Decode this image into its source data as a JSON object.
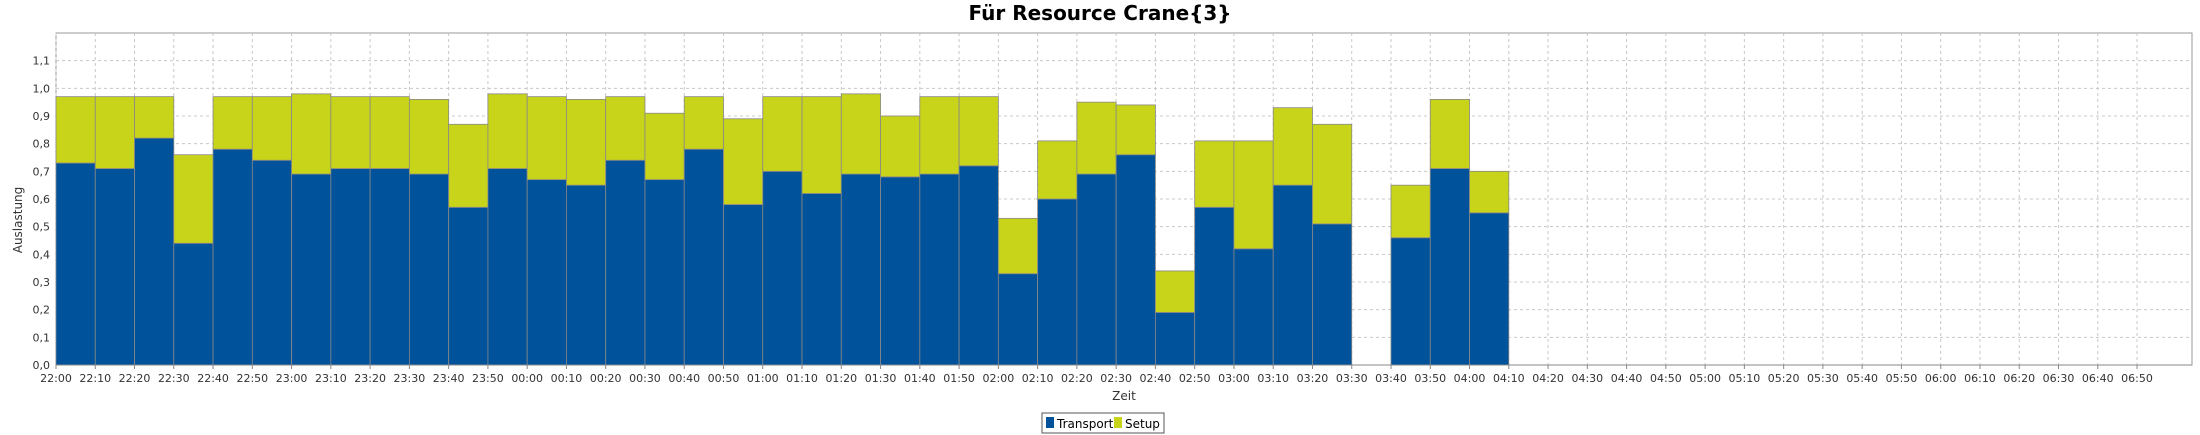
{
  "chart_data": {
    "type": "bar",
    "stacked": true,
    "title": "Für Resource Crane{3}",
    "xlabel": "Zeit",
    "ylabel": "Auslastung",
    "ylim": [
      0,
      1.2
    ],
    "yticks": [
      "0,0",
      "0,1",
      "0,2",
      "0,3",
      "0,4",
      "0,5",
      "0,6",
      "0,7",
      "0,8",
      "0,9",
      "1,0",
      "1,1"
    ],
    "grid": true,
    "legend_position": "bottom-center",
    "categories": [
      "22:00",
      "22:10",
      "22:20",
      "22:30",
      "22:40",
      "22:50",
      "23:00",
      "23:10",
      "23:20",
      "23:30",
      "23:40",
      "23:50",
      "00:00",
      "00:10",
      "00:20",
      "00:30",
      "00:40",
      "00:50",
      "01:00",
      "01:10",
      "01:20",
      "01:30",
      "01:40",
      "01:50",
      "02:00",
      "02:10",
      "02:20",
      "02:30",
      "02:40",
      "02:50",
      "03:00",
      "03:10",
      "03:20",
      "03:30",
      "03:40",
      "03:50",
      "04:00",
      "04:10",
      "04:20",
      "04:30",
      "04:40",
      "04:50",
      "05:00",
      "05:10",
      "05:20",
      "05:30",
      "05:40",
      "05:50",
      "06:00",
      "06:10",
      "06:20",
      "06:30",
      "06:40",
      "06:50"
    ],
    "series": [
      {
        "name": "Transport",
        "color": "#00529b",
        "values": [
          0.73,
          0.71,
          0.82,
          0.44,
          0.78,
          0.74,
          0.69,
          0.71,
          0.71,
          0.69,
          0.57,
          0.71,
          0.67,
          0.65,
          0.74,
          0.67,
          0.78,
          0.58,
          0.7,
          0.62,
          0.69,
          0.68,
          0.69,
          0.72,
          0.33,
          0.6,
          0.69,
          0.76,
          0.19,
          0.57,
          0.42,
          0.65,
          0.51,
          0,
          0.46,
          0.71,
          0.55,
          0,
          0,
          0,
          0,
          0,
          0,
          0,
          0,
          0,
          0,
          0,
          0,
          0,
          0,
          0,
          0,
          0
        ]
      },
      {
        "name": "Setup",
        "color": "#c8d41a",
        "values": [
          0.24,
          0.26,
          0.15,
          0.32,
          0.19,
          0.23,
          0.29,
          0.26,
          0.26,
          0.27,
          0.3,
          0.27,
          0.3,
          0.31,
          0.23,
          0.24,
          0.19,
          0.31,
          0.27,
          0.35,
          0.29,
          0.22,
          0.28,
          0.25,
          0.2,
          0.21,
          0.26,
          0.18,
          0.15,
          0.24,
          0.39,
          0.28,
          0.36,
          0,
          0.19,
          0.25,
          0.15,
          0,
          0,
          0,
          0,
          0,
          0,
          0,
          0,
          0,
          0,
          0,
          0,
          0,
          0,
          0,
          0,
          0
        ]
      }
    ]
  }
}
